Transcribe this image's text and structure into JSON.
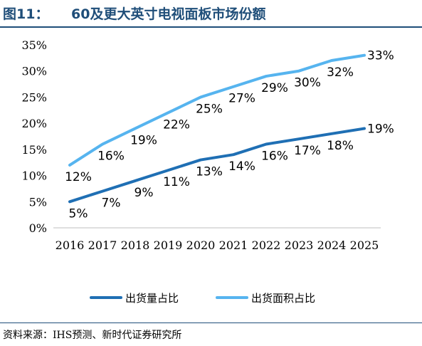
{
  "figure": {
    "label": "图11：",
    "title": "60及更大英寸电视面板市场份额"
  },
  "source": "资料来源：IHS预测、新时代证券研究所",
  "colors": {
    "title": "#1f4e79",
    "series_shipment": "#1f6fb4",
    "series_area": "#56b4ef"
  },
  "chart_data": {
    "type": "line",
    "x": [
      "2016",
      "2017",
      "2018",
      "2019",
      "2020",
      "2021",
      "2022",
      "2023",
      "2024",
      "2025"
    ],
    "yticks": [
      "0%",
      "5%",
      "10%",
      "15%",
      "20%",
      "25%",
      "30%",
      "35%"
    ],
    "ylim": [
      0,
      35
    ],
    "grid": false,
    "legend_position": "bottom",
    "series": [
      {
        "name": "出货量占比",
        "values": [
          5,
          7,
          9,
          11,
          13,
          14,
          16,
          17,
          18,
          19
        ],
        "labels": [
          "5%",
          "7%",
          "9%",
          "11%",
          "13%",
          "14%",
          "16%",
          "17%",
          "18%",
          "19%"
        ]
      },
      {
        "name": "出货面积占比",
        "values": [
          12,
          16,
          19,
          22,
          25,
          27,
          29,
          30,
          32,
          33
        ],
        "labels": [
          "12%",
          "16%",
          "19%",
          "22%",
          "25%",
          "27%",
          "29%",
          "30%",
          "32%",
          "33%"
        ]
      }
    ]
  }
}
